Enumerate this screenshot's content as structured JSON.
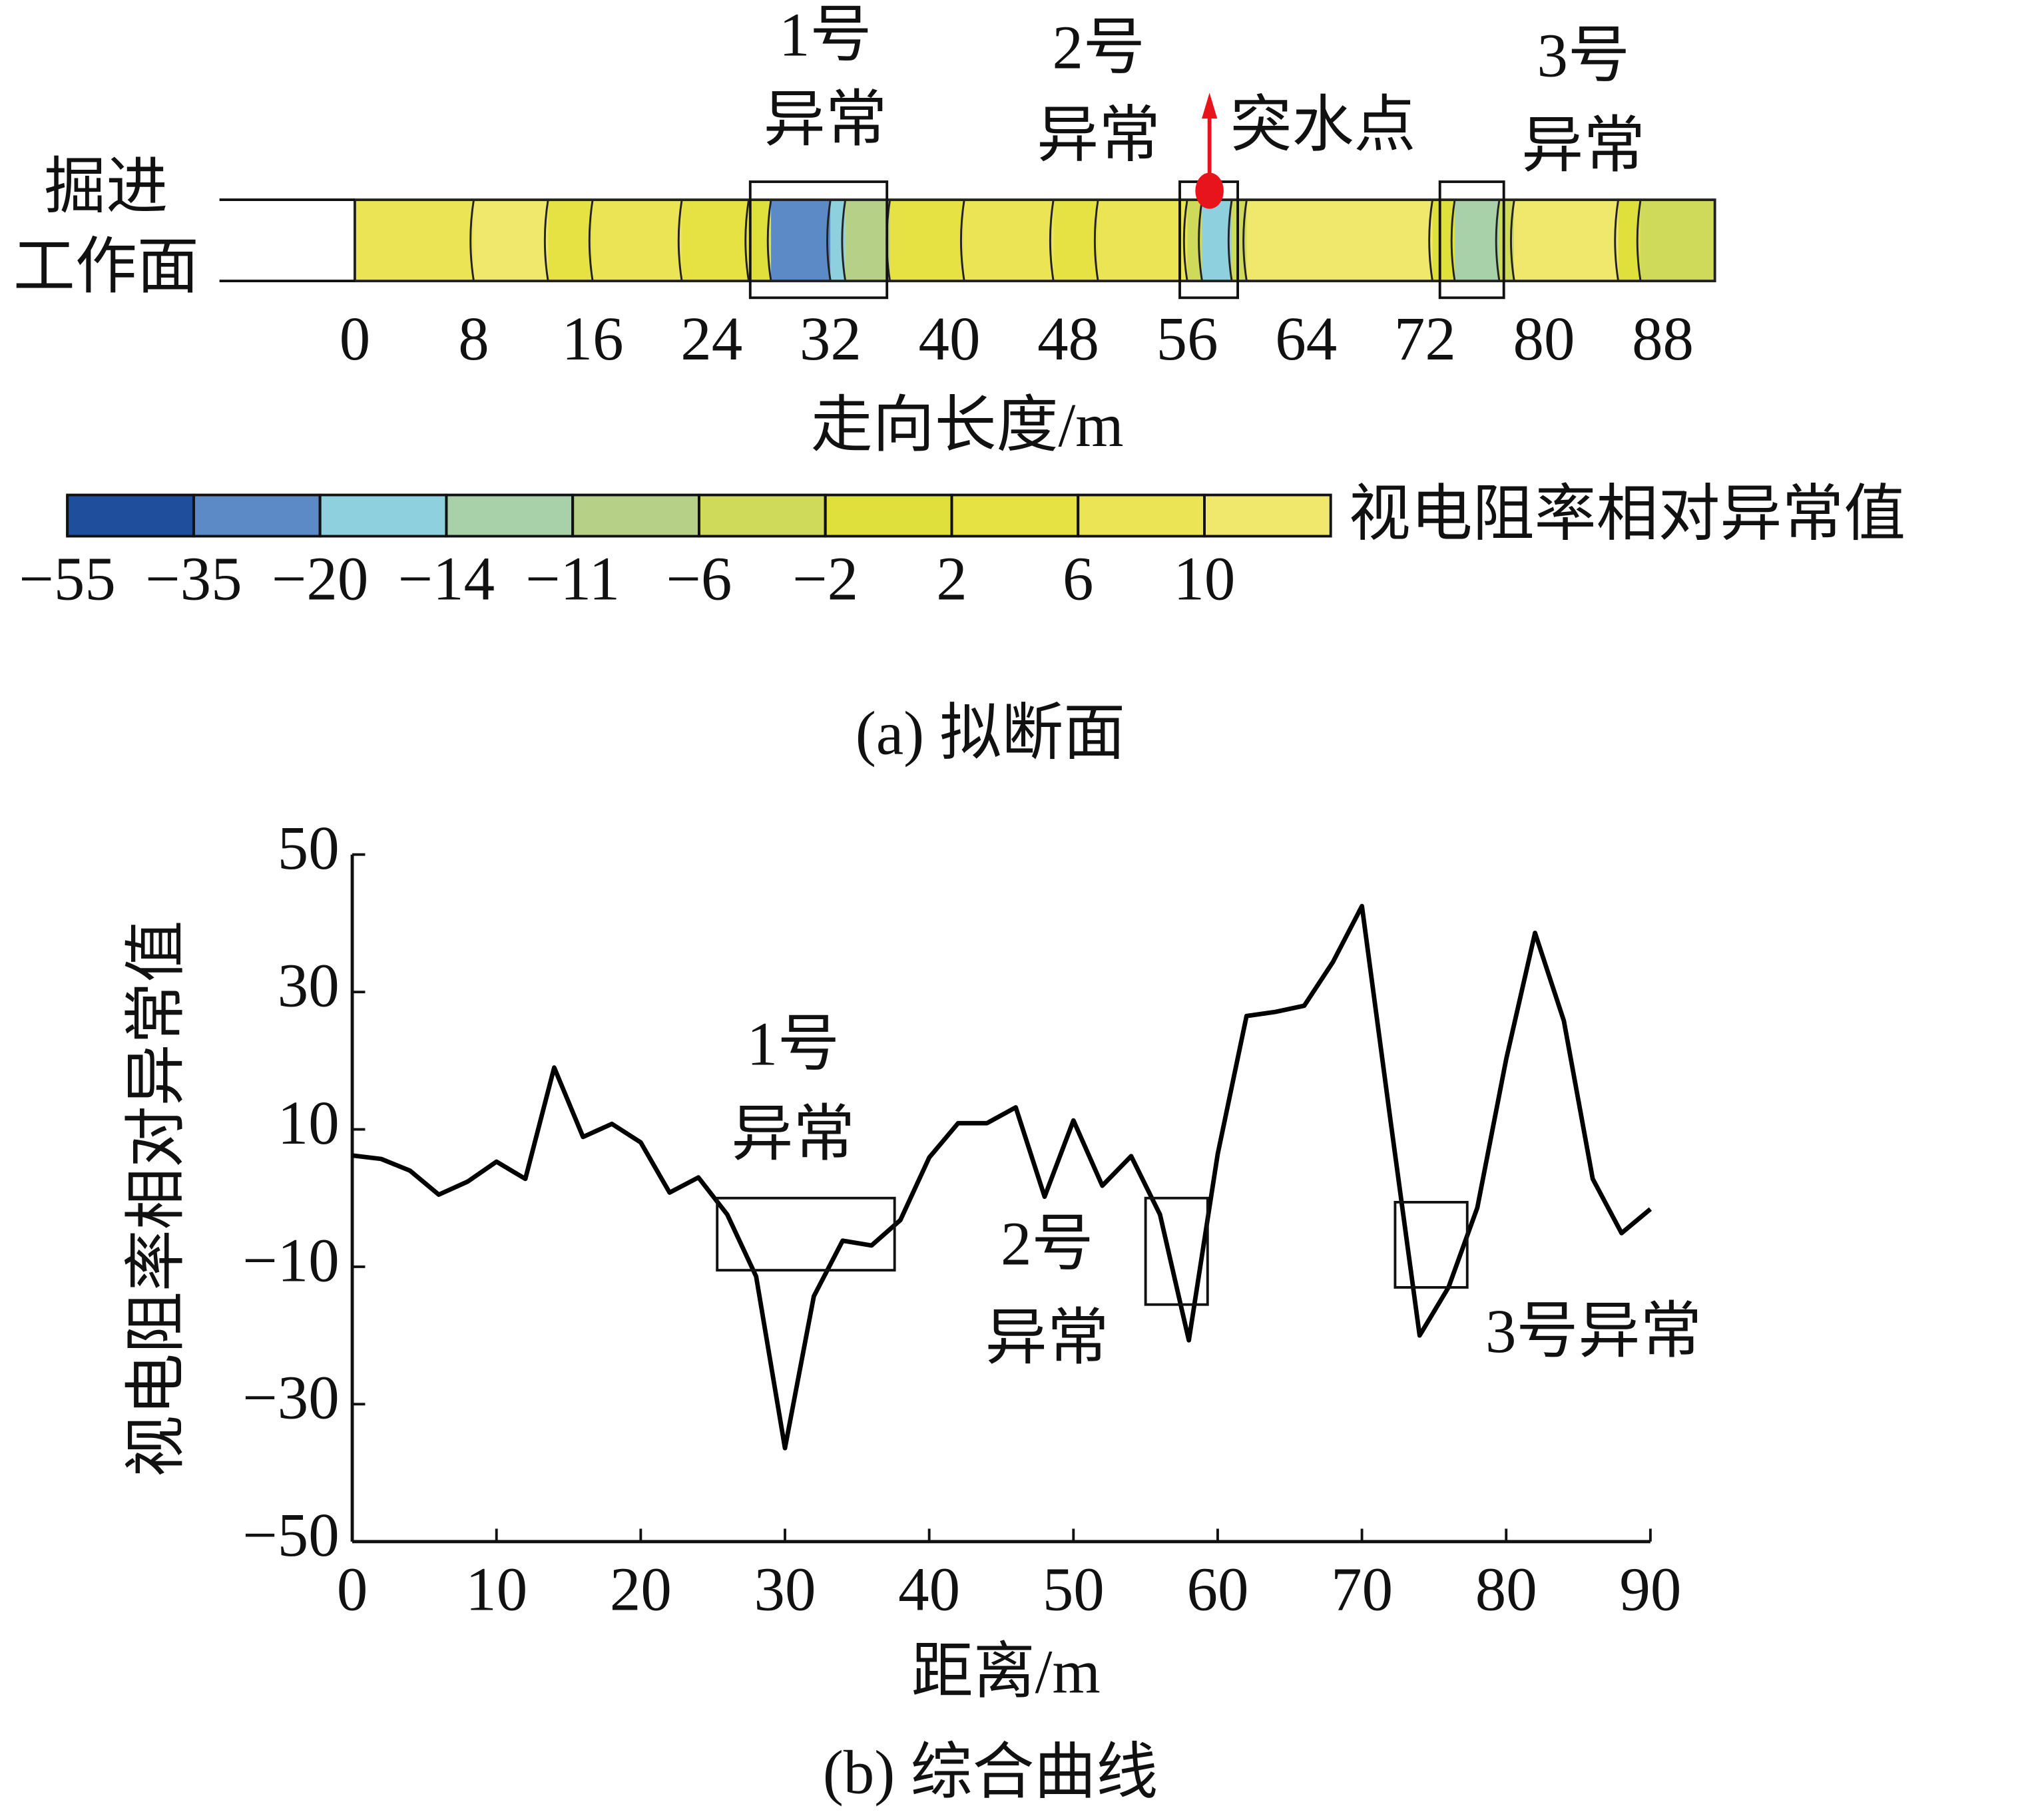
{
  "chart_data": [
    {
      "type": "strip",
      "title": "(a) 拟断面",
      "y_label": [
        "掘进",
        "工作面"
      ],
      "x_label": "走向长度/m",
      "xlim": [
        0,
        91.5
      ],
      "xticks": [
        0,
        8,
        16,
        24,
        32,
        40,
        48,
        56,
        64,
        72,
        80,
        88
      ],
      "bins": [
        0,
        8,
        13,
        16,
        22,
        26.5,
        28,
        32,
        33,
        36,
        41,
        47,
        50,
        56,
        57,
        59,
        60,
        72.5,
        74,
        77,
        78,
        85,
        86.5,
        91.5
      ],
      "values": [
        6,
        10,
        2,
        6,
        2,
        -2,
        -35,
        -20,
        -11,
        2,
        6,
        2,
        6,
        -6,
        -20,
        -6,
        10,
        -2,
        -14,
        -6,
        10,
        -2,
        -6
      ],
      "regions": [
        {
          "x": [
            26.6,
            35.8
          ]
        },
        {
          "x": [
            55.5,
            59.4
          ]
        },
        {
          "x": [
            73,
            77.3
          ]
        }
      ],
      "annotations": [
        {
          "lines": [
            "1号",
            "异常"
          ]
        },
        {
          "lines": [
            "2号",
            "异常"
          ]
        },
        {
          "lines": [
            "3号",
            "异常"
          ]
        }
      ],
      "inrush_point": {
        "label": "突水点",
        "x": 57.5,
        "color": "#e8141c"
      },
      "colorbar": {
        "label": "视电阻率相对异常值",
        "ticks": [
          {
            "value": -55,
            "label": "−55"
          },
          {
            "value": -35,
            "label": "−35"
          },
          {
            "value": -20,
            "label": "−20"
          },
          {
            "value": -14,
            "label": "−14"
          },
          {
            "value": -11,
            "label": "−11"
          },
          {
            "value": -6,
            "label": "−6"
          },
          {
            "value": -2,
            "label": "−2"
          },
          2,
          6,
          10
        ],
        "colors": [
          "#1f4e9c",
          "#5b8ac6",
          "#8fd0df",
          "#a9d1a9",
          "#b6d088",
          "#cfd95a",
          "#e0e03c",
          "#e6e244",
          "#ebe454",
          "#efe86c"
        ]
      }
    },
    {
      "type": "line",
      "title": "(b) 综合曲线",
      "x_label": "距离/m",
      "y_label": "视电阻率相对异常值",
      "color": "#000000",
      "x": [
        0,
        2,
        4,
        6,
        8,
        10,
        12,
        14,
        16,
        18,
        20,
        22,
        24,
        26,
        28,
        30,
        32,
        34,
        36,
        38,
        40,
        42,
        44,
        46,
        48,
        50,
        52,
        54,
        56,
        58,
        60,
        62,
        64,
        66,
        68,
        70,
        72,
        74,
        76,
        78,
        80,
        82,
        84,
        86,
        88,
        90
      ],
      "values": [
        6.2,
        5.7,
        4,
        0.5,
        2.4,
        5.3,
        2.8,
        19,
        8.9,
        10.8,
        8.1,
        0.8,
        3,
        -2.4,
        -11.4,
        -36.4,
        -14.3,
        -6.2,
        -6.9,
        -3.2,
        5.9,
        10.9,
        10.9,
        13.2,
        0.2,
        11.3,
        1.8,
        6.1,
        -2.4,
        -20.7,
        6.4,
        26.5,
        27.1,
        28,
        34.4,
        42.5,
        11,
        -20,
        -13,
        -1.4,
        20.2,
        38.6,
        25.8,
        2.8,
        -5.1,
        -1.6
      ],
      "xlim": [
        0,
        90
      ],
      "ylim": [
        -50,
        50
      ],
      "xticks": [
        0,
        10,
        20,
        30,
        40,
        50,
        60,
        70,
        80,
        90
      ],
      "yticks": [
        {
          "value": -50,
          "label": "−50"
        },
        {
          "value": -30,
          "label": "−30"
        },
        {
          "value": -10,
          "label": "−10"
        },
        10,
        30,
        50
      ],
      "regions": [
        {
          "x": [
            25.3,
            37.6
          ],
          "y": [
            -10.5,
            0
          ]
        },
        {
          "x": [
            55,
            59.3
          ],
          "y": [
            -15.5,
            0
          ]
        },
        {
          "x": [
            72.3,
            77.3
          ],
          "y": [
            -13,
            -0.6
          ]
        }
      ],
      "annotations": [
        {
          "lines": [
            "1号",
            "异常"
          ]
        },
        {
          "lines": [
            "2号",
            "异常"
          ]
        },
        {
          "lines": [
            "3号异常"
          ]
        }
      ]
    }
  ]
}
